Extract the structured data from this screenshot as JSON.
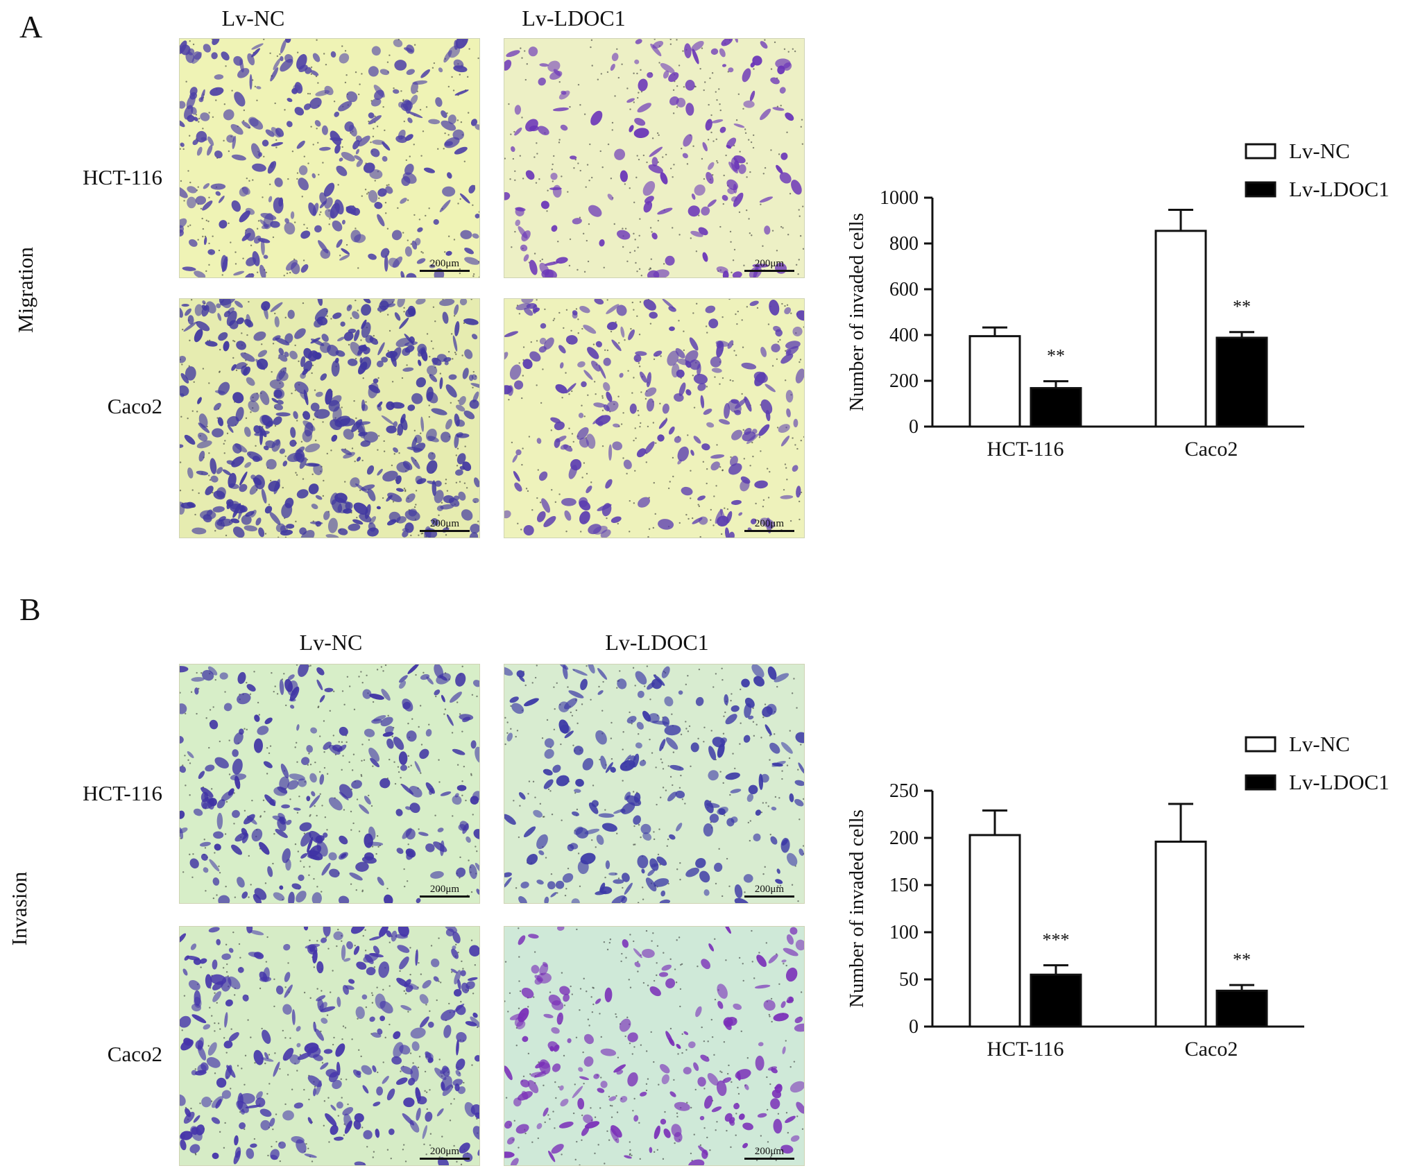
{
  "panels": [
    {
      "letter": "A",
      "side_label": "Migration",
      "columns": [
        "Lv-NC",
        "Lv-LDOC1"
      ],
      "rows": [
        "HCT-116",
        "Caco2"
      ],
      "scale_bar": "200μm",
      "image_tints": [
        {
          "bg": "#eff3b5",
          "cell": "#4c3fa6",
          "density": 0.55
        },
        {
          "bg": "#edf0c5",
          "cell": "#6a34b8",
          "density": 0.25
        },
        {
          "bg": "#e6ecb0",
          "cell": "#3f36a0",
          "density": 0.9
        },
        {
          "bg": "#eef2bb",
          "cell": "#5b3db0",
          "density": 0.4
        }
      ]
    },
    {
      "letter": "B",
      "side_label": "Invasion",
      "columns": [
        "Lv-NC",
        "Lv-LDOC1"
      ],
      "rows": [
        "HCT-116",
        "Caco2"
      ],
      "scale_bar": "200μm",
      "image_tints": [
        {
          "bg": "#d7eec8",
          "cell": "#3e32a4",
          "density": 0.45
        },
        {
          "bg": "#d8ecd0",
          "cell": "#3b38a6",
          "density": 0.35
        },
        {
          "bg": "#d6ecc6",
          "cell": "#4434aa",
          "density": 0.55
        },
        {
          "bg": "#cfe9d8",
          "cell": "#7a2fb8",
          "density": 0.3
        }
      ]
    }
  ],
  "chart_data": [
    {
      "type": "bar",
      "categories": [
        "HCT-116",
        "Caco2"
      ],
      "series": [
        {
          "name": "Lv-NC",
          "values": [
            395,
            855
          ],
          "errors": [
            38,
            92
          ],
          "color": "#ffffff"
        },
        {
          "name": "Lv-LDOC1",
          "values": [
            168,
            388
          ],
          "errors": [
            30,
            25
          ],
          "color": "#000000"
        }
      ],
      "significance": [
        [
          "",
          "**"
        ],
        [
          "",
          "**"
        ]
      ],
      "ylabel": "Number of invaded cells",
      "ylim": [
        0,
        1000
      ],
      "yticks": [
        0,
        200,
        400,
        600,
        800,
        1000
      ],
      "legend": "top-right"
    },
    {
      "type": "bar",
      "categories": [
        "HCT-116",
        "Caco2"
      ],
      "series": [
        {
          "name": "Lv-NC",
          "values": [
            203,
            196
          ],
          "errors": [
            26,
            40
          ],
          "color": "#ffffff"
        },
        {
          "name": "Lv-LDOC1",
          "values": [
            55,
            38
          ],
          "errors": [
            10,
            6
          ],
          "color": "#000000"
        }
      ],
      "significance": [
        [
          "",
          "***"
        ],
        [
          "",
          "**"
        ]
      ],
      "ylabel": "Number of invaded cells",
      "ylim": [
        0,
        250
      ],
      "yticks": [
        0,
        50,
        100,
        150,
        200,
        250
      ],
      "legend": "top-right"
    }
  ]
}
